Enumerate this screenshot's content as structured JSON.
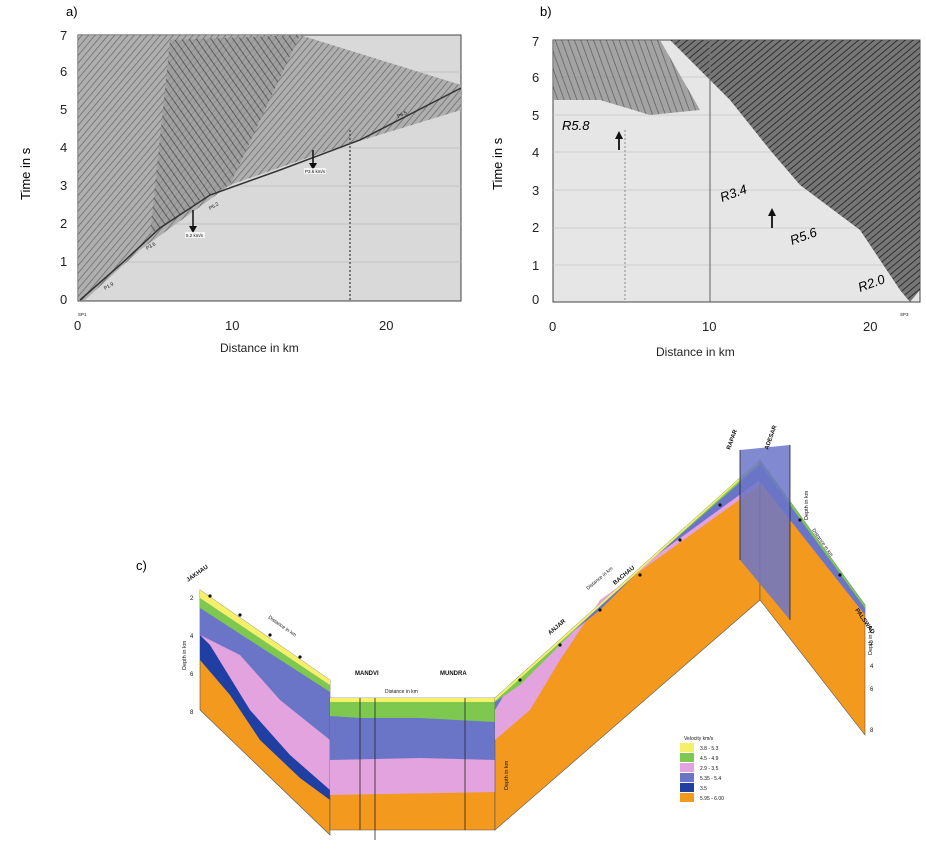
{
  "panel_a": {
    "label": "a)",
    "ylabel": "Time in s",
    "xlabel": "Distance in km",
    "yticks": [
      "0",
      "1",
      "2",
      "3",
      "4",
      "5",
      "6",
      "7"
    ],
    "xticks": [
      "0",
      "10",
      "20"
    ],
    "sp_label": "SP1",
    "phases": [
      "P1.9",
      "P3.6",
      "P5.2",
      "P6.5"
    ],
    "arrow_labels": [
      "5.2 km/s",
      "P3.6 km/s"
    ]
  },
  "panel_b": {
    "label": "b)",
    "ylabel": "Time in s",
    "xlabel": "Distance in km",
    "yticks": [
      "0",
      "1",
      "2",
      "3",
      "4",
      "5",
      "6",
      "7"
    ],
    "xticks": [
      "0",
      "10",
      "20"
    ],
    "sp_label": "SP3",
    "phases": [
      "R5.8",
      "R3.4",
      "R5.6",
      "R2.0"
    ]
  },
  "panel_c": {
    "label": "c)",
    "places": [
      "JAKHAU",
      "MANDVI",
      "MUNDRA",
      "ANJAR",
      "BACHAU",
      "RAPAR",
      "ADESAR",
      "PALSWAD"
    ],
    "depth_label": "Depth in km",
    "distance_label": "Distance in km",
    "depth_ticks": [
      "2",
      "4",
      "6",
      "8"
    ],
    "legend_title": "Velocity km/s",
    "legend": [
      {
        "range": "3.8 - 5.3",
        "color": "#f4f06a"
      },
      {
        "range": "4.5 - 4.9",
        "color": "#7ec850"
      },
      {
        "range": "2.9 - 3.5",
        "color": "#e3a3de"
      },
      {
        "range": "5.35 - 5.4",
        "color": "#6b75c8"
      },
      {
        "range": "3.5",
        "color": "#1f3fa3"
      },
      {
        "range": "5.95 - 6.00",
        "color": "#f39a1e"
      }
    ]
  }
}
